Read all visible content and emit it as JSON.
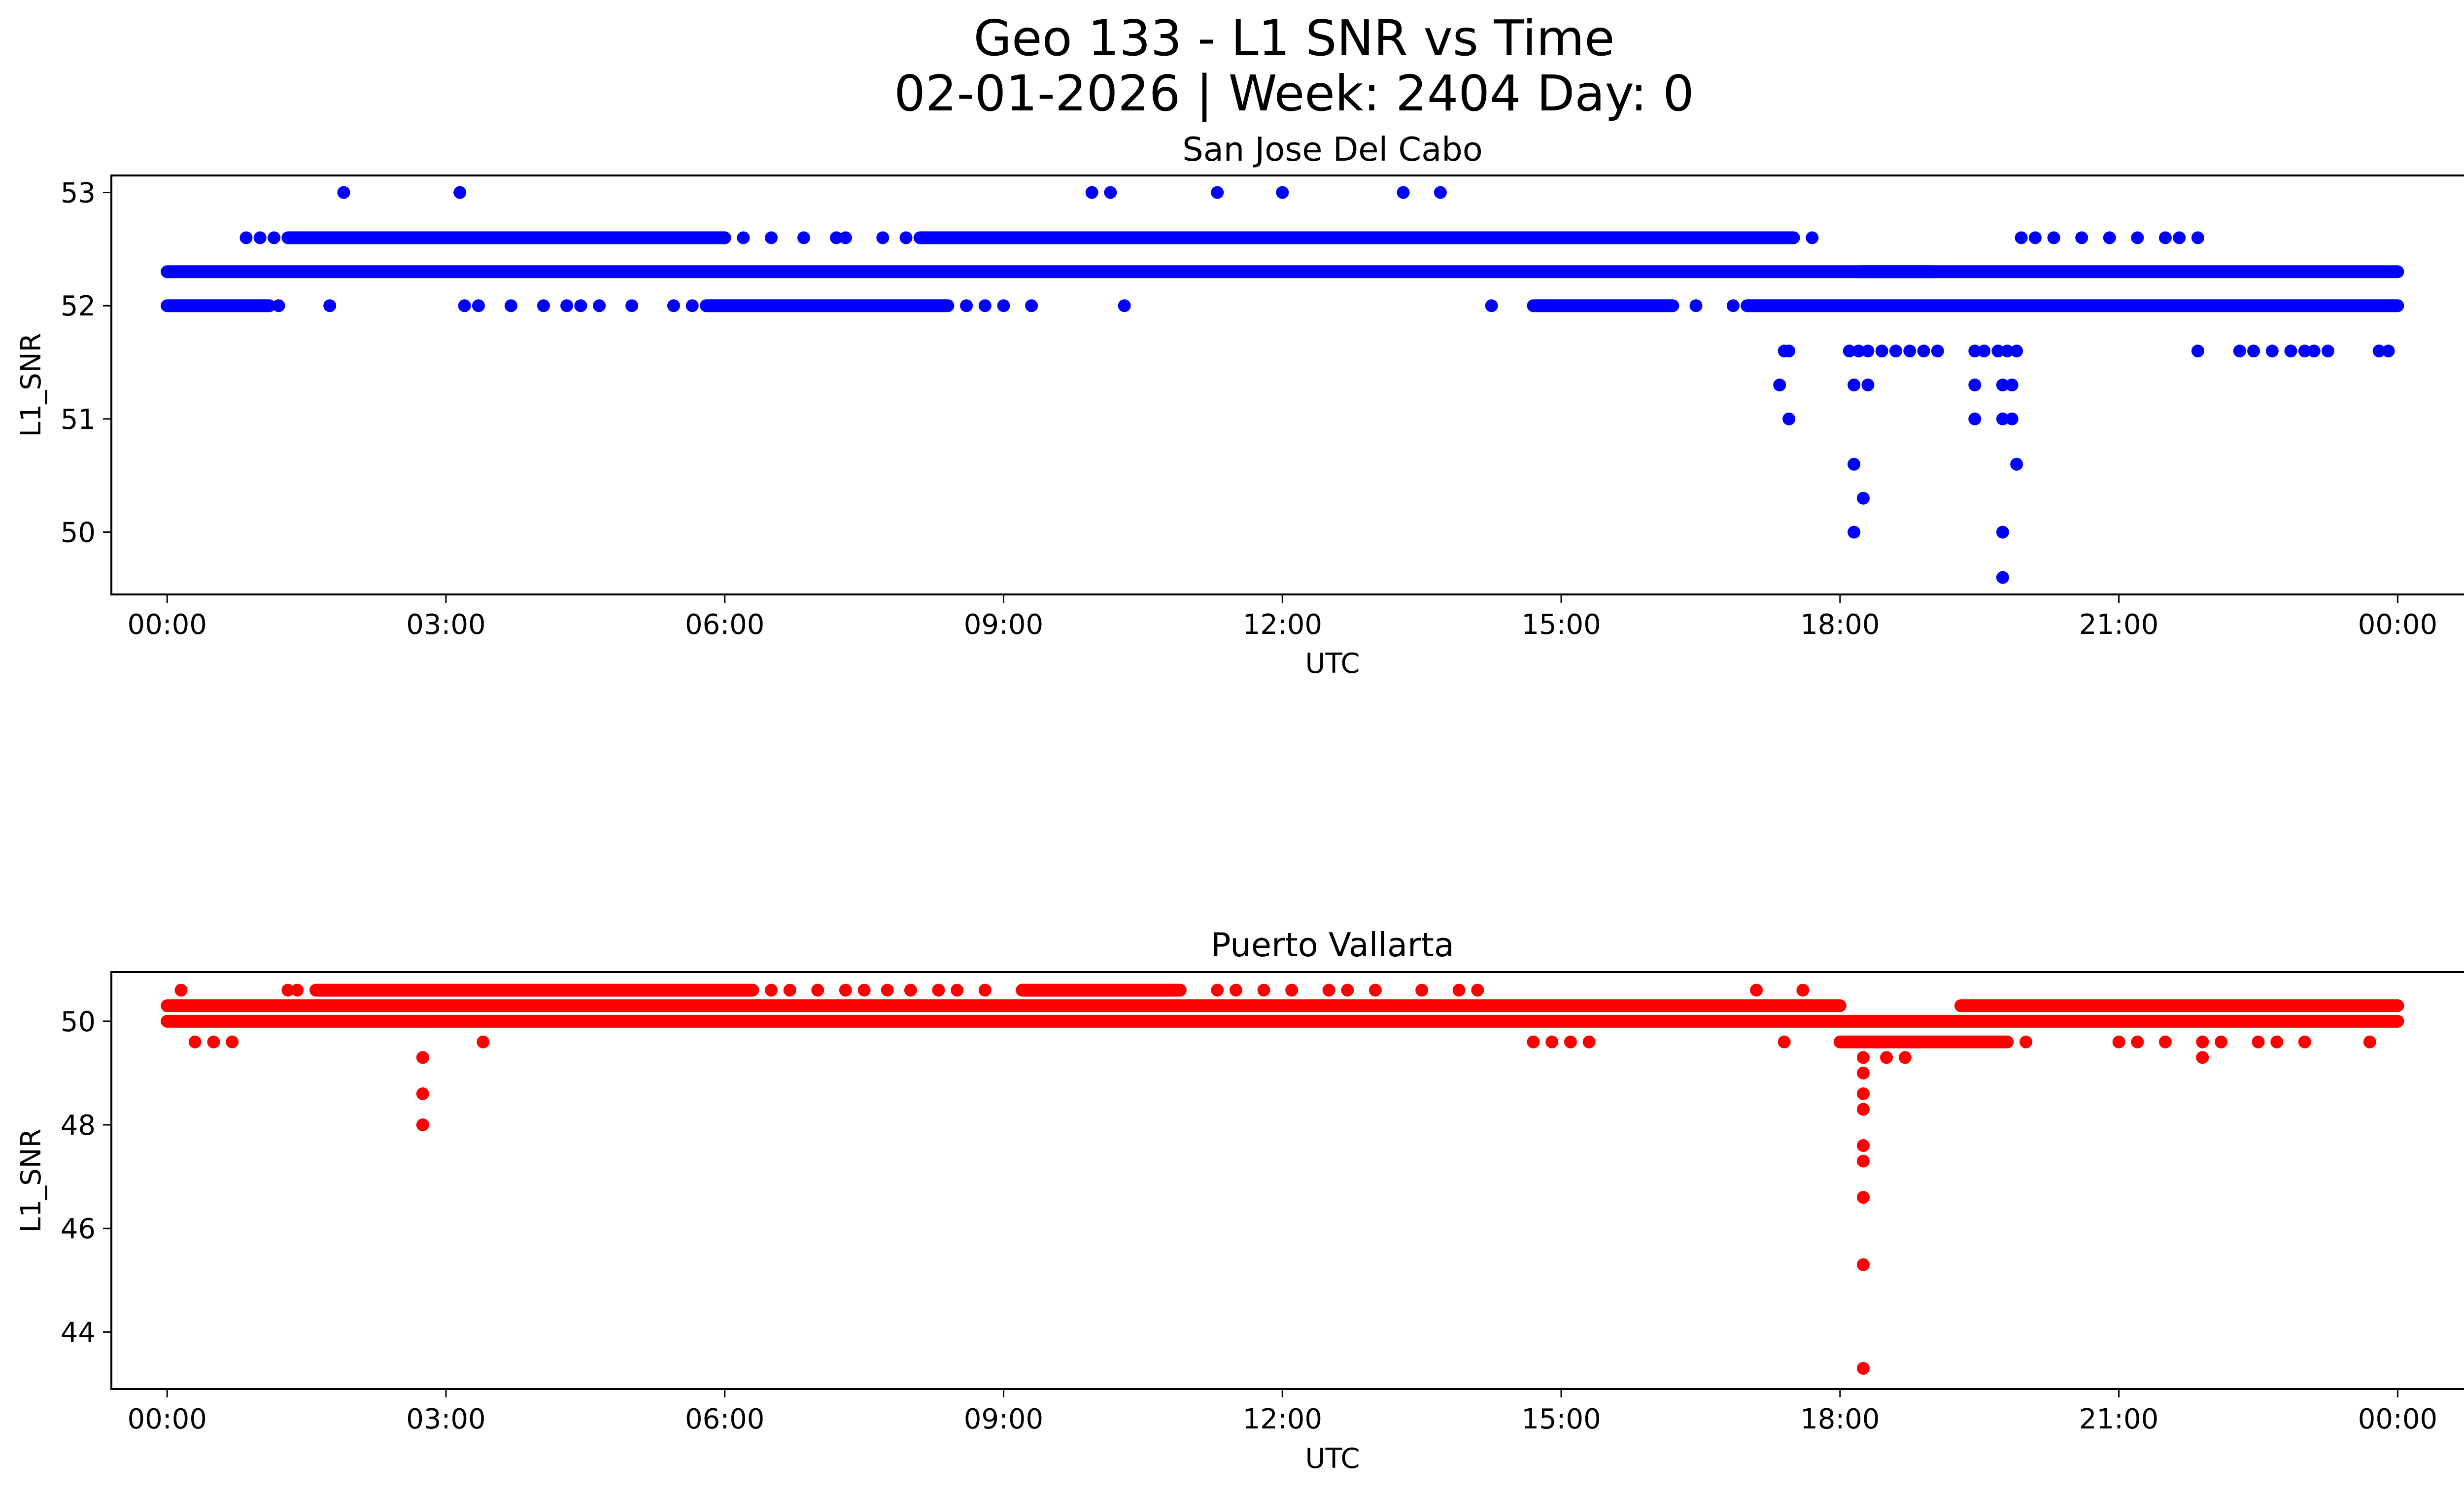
{
  "figure": {
    "title_line1": "Geo 133 - L1 SNR vs Time",
    "title_line2": "02-01-2026 | Week: 2404 Day: 0"
  },
  "chart_data": [
    {
      "type": "scatter",
      "title": "San Jose Del Cabo",
      "xlabel": "UTC",
      "ylabel": "L1_SNR",
      "color": "#0000ff",
      "xlim_hours": [
        -0.6,
        25.7
      ],
      "ylim": [
        49.45,
        53.15
      ],
      "xticks": [
        {
          "h": 0,
          "label": "00:00"
        },
        {
          "h": 3,
          "label": "03:00"
        },
        {
          "h": 6,
          "label": "06:00"
        },
        {
          "h": 9,
          "label": "09:00"
        },
        {
          "h": 12,
          "label": "12:00"
        },
        {
          "h": 15,
          "label": "15:00"
        },
        {
          "h": 18,
          "label": "18:00"
        },
        {
          "h": 21,
          "label": "21:00"
        },
        {
          "h": 24,
          "label": "00:00"
        }
      ],
      "yticks": [
        {
          "v": 50,
          "label": "50"
        },
        {
          "v": 51,
          "label": "51"
        },
        {
          "v": 52,
          "label": "52"
        },
        {
          "v": 53,
          "label": "53"
        }
      ],
      "bands": [
        {
          "y": 52.3,
          "from": 0,
          "to": 24
        },
        {
          "y": 52.0,
          "from": 0,
          "to": 1.1
        },
        {
          "y": 52.0,
          "from": 5.8,
          "to": 8.4
        },
        {
          "y": 52.0,
          "from": 14.7,
          "to": 16.2
        },
        {
          "y": 52.0,
          "from": 17.0,
          "to": 24
        },
        {
          "y": 52.6,
          "from": 1.3,
          "to": 6.0
        },
        {
          "y": 52.6,
          "from": 8.1,
          "to": 17.5
        },
        {
          "y": 52.3,
          "from": 18.2,
          "to": 19.0
        }
      ],
      "points": [
        [
          1.2,
          52.0
        ],
        [
          1.75,
          52.0
        ],
        [
          3.2,
          52.0
        ],
        [
          3.35,
          52.0
        ],
        [
          3.7,
          52.0
        ],
        [
          4.05,
          52.0
        ],
        [
          4.3,
          52.0
        ],
        [
          4.45,
          52.0
        ],
        [
          4.65,
          52.0
        ],
        [
          5.0,
          52.0
        ],
        [
          5.45,
          52.0
        ],
        [
          5.65,
          52.0
        ],
        [
          8.6,
          52.0
        ],
        [
          8.8,
          52.0
        ],
        [
          9.0,
          52.0
        ],
        [
          9.3,
          52.0
        ],
        [
          10.3,
          52.0
        ],
        [
          14.25,
          52.0
        ],
        [
          16.45,
          52.0
        ],
        [
          16.85,
          52.0
        ],
        [
          0.85,
          52.6
        ],
        [
          1.0,
          52.6
        ],
        [
          1.15,
          52.6
        ],
        [
          6.2,
          52.6
        ],
        [
          6.5,
          52.6
        ],
        [
          6.85,
          52.6
        ],
        [
          7.2,
          52.6
        ],
        [
          7.3,
          52.6
        ],
        [
          7.7,
          52.6
        ],
        [
          7.95,
          52.6
        ],
        [
          17.7,
          52.6
        ],
        [
          19.95,
          52.6
        ],
        [
          20.1,
          52.6
        ],
        [
          20.3,
          52.6
        ],
        [
          20.6,
          52.6
        ],
        [
          20.9,
          52.6
        ],
        [
          21.2,
          52.6
        ],
        [
          21.5,
          52.6
        ],
        [
          21.65,
          52.6
        ],
        [
          21.85,
          52.6
        ],
        [
          1.9,
          53.0
        ],
        [
          3.15,
          53.0
        ],
        [
          9.95,
          53.0
        ],
        [
          10.15,
          53.0
        ],
        [
          11.3,
          53.0
        ],
        [
          12.0,
          53.0
        ],
        [
          13.3,
          53.0
        ],
        [
          13.7,
          53.0
        ],
        [
          17.4,
          51.6
        ],
        [
          17.45,
          51.6
        ],
        [
          18.1,
          51.6
        ],
        [
          18.2,
          51.6
        ],
        [
          18.3,
          51.6
        ],
        [
          18.45,
          51.6
        ],
        [
          18.6,
          51.6
        ],
        [
          18.75,
          51.6
        ],
        [
          18.9,
          51.6
        ],
        [
          19.05,
          51.6
        ],
        [
          19.45,
          51.6
        ],
        [
          19.55,
          51.6
        ],
        [
          19.7,
          51.6
        ],
        [
          19.8,
          51.6
        ],
        [
          19.9,
          51.6
        ],
        [
          21.85,
          51.6
        ],
        [
          22.3,
          51.6
        ],
        [
          22.45,
          51.6
        ],
        [
          22.65,
          51.6
        ],
        [
          22.85,
          51.6
        ],
        [
          23.0,
          51.6
        ],
        [
          23.1,
          51.6
        ],
        [
          23.25,
          51.6
        ],
        [
          23.8,
          51.6
        ],
        [
          23.9,
          51.6
        ],
        [
          17.35,
          51.3
        ],
        [
          18.15,
          51.3
        ],
        [
          18.3,
          51.3
        ],
        [
          19.45,
          51.3
        ],
        [
          19.75,
          51.3
        ],
        [
          19.85,
          51.3
        ],
        [
          17.45,
          51.0
        ],
        [
          19.45,
          51.0
        ],
        [
          19.75,
          51.0
        ],
        [
          19.85,
          51.0
        ],
        [
          18.15,
          50.6
        ],
        [
          19.9,
          50.6
        ],
        [
          18.25,
          50.3
        ],
        [
          18.15,
          50.0
        ],
        [
          19.75,
          50.0
        ],
        [
          19.75,
          49.6
        ]
      ]
    },
    {
      "type": "scatter",
      "title": "Puerto Vallarta",
      "xlabel": "UTC",
      "ylabel": "L1_SNR",
      "color": "#ff0000",
      "xlim_hours": [
        -0.6,
        25.7
      ],
      "ylim": [
        42.9,
        50.95
      ],
      "xticks": [
        {
          "h": 0,
          "label": "00:00"
        },
        {
          "h": 3,
          "label": "03:00"
        },
        {
          "h": 6,
          "label": "06:00"
        },
        {
          "h": 9,
          "label": "09:00"
        },
        {
          "h": 12,
          "label": "12:00"
        },
        {
          "h": 15,
          "label": "15:00"
        },
        {
          "h": 18,
          "label": "18:00"
        },
        {
          "h": 21,
          "label": "21:00"
        },
        {
          "h": 24,
          "label": "00:00"
        }
      ],
      "yticks": [
        {
          "v": 44,
          "label": "44"
        },
        {
          "v": 46,
          "label": "46"
        },
        {
          "v": 48,
          "label": "48"
        },
        {
          "v": 50,
          "label": "50"
        }
      ],
      "bands": [
        {
          "y": 50.3,
          "from": 0,
          "to": 18.0
        },
        {
          "y": 50.3,
          "from": 19.3,
          "to": 24
        },
        {
          "y": 50.0,
          "from": 0,
          "to": 24
        },
        {
          "y": 50.6,
          "from": 1.6,
          "to": 6.3
        },
        {
          "y": 50.6,
          "from": 9.2,
          "to": 10.9
        },
        {
          "y": 49.6,
          "from": 18.0,
          "to": 19.8
        }
      ],
      "points": [
        [
          0.15,
          50.6
        ],
        [
          1.3,
          50.6
        ],
        [
          1.4,
          50.6
        ],
        [
          6.5,
          50.6
        ],
        [
          6.7,
          50.6
        ],
        [
          7.0,
          50.6
        ],
        [
          7.3,
          50.6
        ],
        [
          7.5,
          50.6
        ],
        [
          7.75,
          50.6
        ],
        [
          8.0,
          50.6
        ],
        [
          8.3,
          50.6
        ],
        [
          8.5,
          50.6
        ],
        [
          8.8,
          50.6
        ],
        [
          11.3,
          50.6
        ],
        [
          11.5,
          50.6
        ],
        [
          11.8,
          50.6
        ],
        [
          12.1,
          50.6
        ],
        [
          12.5,
          50.6
        ],
        [
          12.7,
          50.6
        ],
        [
          13.0,
          50.6
        ],
        [
          13.5,
          50.6
        ],
        [
          13.9,
          50.6
        ],
        [
          14.1,
          50.6
        ],
        [
          17.1,
          50.6
        ],
        [
          17.6,
          50.6
        ],
        [
          0.3,
          49.6
        ],
        [
          0.5,
          49.6
        ],
        [
          0.7,
          49.6
        ],
        [
          3.4,
          49.6
        ],
        [
          14.7,
          49.6
        ],
        [
          14.9,
          49.6
        ],
        [
          15.1,
          49.6
        ],
        [
          15.3,
          49.6
        ],
        [
          17.4,
          49.6
        ],
        [
          20.0,
          49.6
        ],
        [
          21.0,
          49.6
        ],
        [
          21.2,
          49.6
        ],
        [
          21.5,
          49.6
        ],
        [
          21.9,
          49.6
        ],
        [
          22.1,
          49.6
        ],
        [
          22.5,
          49.6
        ],
        [
          22.7,
          49.6
        ],
        [
          23.0,
          49.6
        ],
        [
          23.7,
          49.6
        ],
        [
          18.5,
          49.3
        ],
        [
          18.7,
          49.3
        ],
        [
          21.9,
          49.3
        ],
        [
          2.75,
          50.0
        ],
        [
          2.75,
          49.3
        ],
        [
          2.75,
          48.6
        ],
        [
          2.75,
          48.0
        ],
        [
          18.25,
          49.3
        ],
        [
          18.25,
          49.0
        ],
        [
          18.25,
          48.6
        ],
        [
          18.25,
          48.3
        ],
        [
          18.25,
          47.6
        ],
        [
          18.25,
          47.3
        ],
        [
          18.25,
          46.6
        ],
        [
          18.25,
          45.3
        ],
        [
          18.25,
          43.3
        ]
      ]
    }
  ]
}
